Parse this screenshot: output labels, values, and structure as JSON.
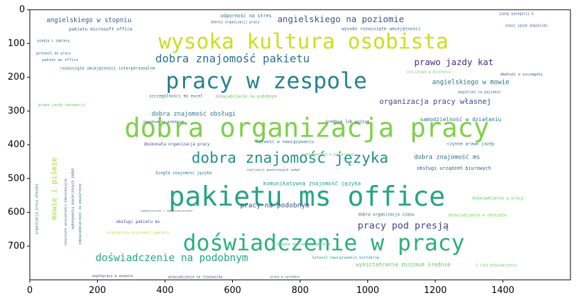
{
  "chart_data": {
    "type": "wordcloud",
    "title": "",
    "xlabel": "",
    "ylabel": "",
    "xlim": [
      0,
      1600
    ],
    "ylim": [
      800,
      0
    ],
    "x_ticks": [
      0,
      200,
      400,
      600,
      800,
      1000,
      1200,
      1400
    ],
    "y_ticks": [
      0,
      100,
      200,
      300,
      400,
      500,
      600,
      700
    ],
    "background": "#ffffff",
    "colormap": "viridis",
    "words": [
      {
        "text": "pakietu ms office",
        "x": 820,
        "y": 555,
        "size": 80,
        "color": "#25a584"
      },
      {
        "text": "dobra organizacja pracy",
        "x": 820,
        "y": 350,
        "size": 78,
        "color": "#7ed04b"
      },
      {
        "text": "doświadczenie w pracy",
        "x": 870,
        "y": 690,
        "size": 66,
        "color": "#2ab07e"
      },
      {
        "text": "pracy w zespole",
        "x": 700,
        "y": 210,
        "size": 66,
        "color": "#26828e"
      },
      {
        "text": "wysoka kultura osobista",
        "x": 810,
        "y": 95,
        "size": 62,
        "color": "#c8e020"
      },
      {
        "text": "dobra znajomość języka",
        "x": 770,
        "y": 440,
        "size": 44,
        "color": "#21918c"
      },
      {
        "text": "dobra znajomość pakietu",
        "x": 600,
        "y": 145,
        "size": 33,
        "color": "#2c728e"
      },
      {
        "text": "doświadczenie na podobnym",
        "x": 420,
        "y": 735,
        "size": 30,
        "color": "#22a884"
      },
      {
        "text": "angielskiego na poziomie",
        "x": 920,
        "y": 28,
        "size": 26,
        "color": "#3b528b"
      },
      {
        "text": "prawo jazdy kat",
        "x": 1255,
        "y": 155,
        "size": 26,
        "color": "#472d7b"
      },
      {
        "text": "pracy pod presją",
        "x": 1105,
        "y": 640,
        "size": 28,
        "color": "#414487"
      },
      {
        "text": "organizacja pracy własnej",
        "x": 1200,
        "y": 272,
        "size": 22,
        "color": "#3e4989"
      },
      {
        "text": "angielskiego w stopniu",
        "x": 175,
        "y": 32,
        "size": 19,
        "color": "#355f8d"
      },
      {
        "text": "angielskiego w mowie",
        "x": 1305,
        "y": 215,
        "size": 19,
        "color": "#2d708e"
      },
      {
        "text": "mowie i piśmie",
        "x": 72,
        "y": 530,
        "size": 22,
        "color": "#a0da39",
        "rotate": -90
      },
      {
        "text": "pracy na podobnym",
        "x": 725,
        "y": 580,
        "size": 20,
        "color": "#3b528b"
      },
      {
        "text": "dobra znajomość obsługi",
        "x": 485,
        "y": 310,
        "size": 18,
        "color": "#2a788e"
      },
      {
        "text": "samodzielność w działaniu",
        "x": 1275,
        "y": 325,
        "size": 16,
        "color": "#2c728e"
      },
      {
        "text": "komunikatywna znajomość języka",
        "x": 835,
        "y": 515,
        "size": 16,
        "color": "#1f9e89"
      },
      {
        "text": "dobra znajomość ms",
        "x": 1235,
        "y": 438,
        "size": 18,
        "color": "#31688e"
      },
      {
        "text": "wykształcenie minimum średnie",
        "x": 1105,
        "y": 755,
        "size": 16,
        "color": "#5ec962"
      },
      {
        "text": "obsługi urządzeń biurowych",
        "x": 1255,
        "y": 470,
        "size": 14,
        "color": "#3b528b"
      },
      {
        "text": "czynne prawo jazdy",
        "x": 1305,
        "y": 398,
        "size": 13,
        "color": "#2c728e"
      },
      {
        "text": "odporność na stres",
        "x": 640,
        "y": 18,
        "size": 14,
        "color": "#2c728e"
      },
      {
        "text": "wysoko rozwinięte umiejętności",
        "x": 1040,
        "y": 57,
        "size": 13,
        "color": "#31688e"
      },
      {
        "text": "pakietu microsoft office",
        "x": 210,
        "y": 58,
        "size": 13,
        "color": "#3b528b"
      },
      {
        "text": "rozwinięte umiejętności interpersonalne",
        "x": 230,
        "y": 175,
        "size": 12,
        "color": "#2e6f8e"
      },
      {
        "text": "doświadczenie na podobnym",
        "x": 640,
        "y": 258,
        "size": 12,
        "color": "#5ec962"
      },
      {
        "text": "szczególności ms excel",
        "x": 433,
        "y": 257,
        "size": 12,
        "color": "#2c728e"
      },
      {
        "text": "doskonała organizacja pracy",
        "x": 435,
        "y": 400,
        "size": 12,
        "color": "#3b528b"
      },
      {
        "text": "biegła znajomość języka",
        "x": 455,
        "y": 485,
        "size": 12,
        "color": "#2a788e"
      },
      {
        "text": "łatwość w nawiązywaniu",
        "x": 755,
        "y": 392,
        "size": 13,
        "color": "#2c728e"
      },
      {
        "text": "dobra organizacja czasu",
        "x": 1055,
        "y": 608,
        "size": 12,
        "color": "#31688e"
      },
      {
        "text": "doświadczenie w obsłudze",
        "x": 1325,
        "y": 610,
        "size": 12,
        "color": "#7ad151"
      },
      {
        "text": "doświadczenie w pracy",
        "x": 1385,
        "y": 560,
        "size": 12,
        "color": "#5ec962"
      },
      {
        "text": "obsługi pakietu ms",
        "x": 320,
        "y": 630,
        "size": 12,
        "color": "#3b528b"
      },
      {
        "text": "biegła obsługa komputera",
        "x": 810,
        "y": 695,
        "size": 11,
        "color": "#4ac16d"
      },
      {
        "text": "łatwość nawiązywania kontaktów",
        "x": 935,
        "y": 735,
        "size": 11,
        "color": "#21918c"
      },
      {
        "text": "praktyczna znajomość pakietu",
        "x": 320,
        "y": 662,
        "size": 11,
        "color": "#b5de2b"
      },
      {
        "text": "średnie lub wyższe",
        "x": 940,
        "y": 333,
        "size": 12,
        "color": "#3e4989"
      },
      {
        "text": "prawo jazdy kategorii",
        "x": 95,
        "y": 283,
        "size": 11,
        "color": "#5ec962"
      },
      {
        "text": "pakiet ms office",
        "x": 90,
        "y": 150,
        "size": 11,
        "color": "#2c728e"
      },
      {
        "text": "gotowość do pracy",
        "x": 70,
        "y": 130,
        "size": 10,
        "color": "#2c728e"
      },
      {
        "text": "wiedza z zakresu",
        "x": 70,
        "y": 93,
        "size": 10,
        "color": "#3b528b"
      },
      {
        "text": "dobrej organizacji pracy",
        "x": 608,
        "y": 38,
        "size": 10,
        "color": "#3b528b"
      },
      {
        "text": "jazdy kategorii b",
        "x": 1440,
        "y": 13,
        "size": 10,
        "color": "#3b528b"
      },
      {
        "text": "znasz język angielski",
        "x": 1470,
        "y": 48,
        "size": 10,
        "color": "#3b528b"
      },
      {
        "text": "dbałość o szczegóły",
        "x": 1455,
        "y": 193,
        "size": 11,
        "color": "#3e4989"
      },
      {
        "text": "inicjatywa w działaniu",
        "x": 1180,
        "y": 186,
        "size": 10,
        "color": "#5ec962"
      },
      {
        "text": "angielski na poziomie",
        "x": 1330,
        "y": 245,
        "size": 10,
        "color": "#3b528b"
      },
      {
        "text": "współpracy w zespole",
        "x": 245,
        "y": 790,
        "size": 10,
        "color": "#3b528b"
      },
      {
        "text": "doświadczenie na stanowisku",
        "x": 490,
        "y": 793,
        "size": 10,
        "color": "#3b528b"
      },
      {
        "text": "pracy w systemie",
        "x": 755,
        "y": 793,
        "size": 9,
        "color": "#3b528b"
      },
      {
        "text": "2 lata doświadczenia",
        "x": 1380,
        "y": 758,
        "size": 10,
        "color": "#5ec962"
      },
      {
        "text": "organizacja pracy własnej",
        "x": 22,
        "y": 590,
        "size": 10,
        "color": "#2c728e",
        "rotate": -90
      },
      {
        "text": "wykonywaniu powierzonych zadań",
        "x": 128,
        "y": 560,
        "size": 10,
        "color": "#3b528b",
        "rotate": -90
      },
      {
        "text": "odpowiedzialność za powierzone",
        "x": 150,
        "y": 605,
        "size": 10,
        "color": "#2c728e",
        "rotate": -90
      },
      {
        "text": "rozwinięte umiejętności komunikacyjne",
        "x": 108,
        "y": 600,
        "size": 9,
        "color": "#3b528b",
        "rotate": -90
      },
      {
        "text": "zaangażowanie w powierzone",
        "x": 880,
        "y": 430,
        "size": 10,
        "color": "#5ec962"
      },
      {
        "text": "realizacji powierzonych zadań",
        "x": 720,
        "y": 476,
        "size": 9,
        "color": "#3b528b"
      },
      {
        "text": "zawodowe na podobnym",
        "x": 395,
        "y": 333,
        "size": 10,
        "color": "#3b528b"
      },
      {
        "text": "samodzielność i odpowiedzialność",
        "x": 405,
        "y": 595,
        "size": 8,
        "color": "#3b528b"
      }
    ]
  }
}
